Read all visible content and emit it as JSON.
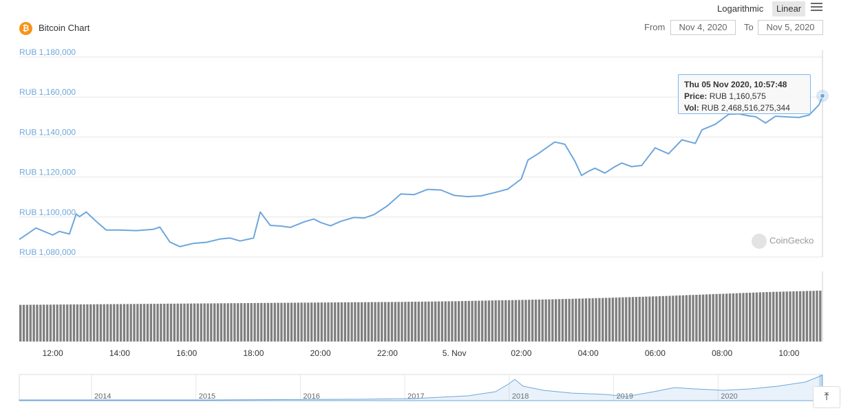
{
  "header": {
    "scale_log_label": "Logarithmic",
    "scale_linear_label": "Linear",
    "menu_icon": "hamburger-menu-icon",
    "chart_title": "Bitcoin Chart",
    "coin_icon": "bitcoin-icon",
    "coin_icon_glyph": "₿",
    "from_label": "From",
    "from_value": "Nov 4, 2020",
    "to_label": "To",
    "to_value": "Nov 5, 2020"
  },
  "tooltip": {
    "datetime": "Thu 05 Nov 2020, 10:57:48",
    "price_label": "Price:",
    "price_value": "RUB 1,160,575",
    "vol_label": "Vol:",
    "vol_value": "RUB 2,468,516,275,344"
  },
  "watermark": "CoinGecko",
  "back_to_top_glyph": "⤒",
  "colors": {
    "line": "#6ea6dc",
    "volume": "#7f7f7f",
    "grid": "#e6e6e6",
    "coin": "#f7931a"
  },
  "chart_data": {
    "type": "line",
    "title": "Bitcoin Chart",
    "currency": "RUB",
    "ylim": [
      1080000,
      1180000
    ],
    "y_ticks": [
      "RUB 1,180,000",
      "RUB 1,160,000",
      "RUB 1,140,000",
      "RUB 1,120,000",
      "RUB 1,100,000",
      "RUB 1,080,000"
    ],
    "y_tick_values": [
      1180000,
      1160000,
      1140000,
      1120000,
      1100000,
      1080000
    ],
    "x_ticks": [
      "12:00",
      "14:00",
      "16:00",
      "18:00",
      "20:00",
      "22:00",
      "5. Nov",
      "02:00",
      "04:00",
      "06:00",
      "08:00",
      "10:00"
    ],
    "x_tick_hours": [
      12,
      14,
      16,
      18,
      20,
      22,
      24,
      26,
      28,
      30,
      32,
      34
    ],
    "x_range_hours": [
      11.0,
      35.0
    ],
    "x_unit": "hours since Nov 4, 2020 00:00",
    "series": [
      {
        "points": [
          [
            11.0,
            1088800
          ],
          [
            11.5,
            1094500
          ],
          [
            12.0,
            1091000
          ],
          [
            12.2,
            1092800
          ],
          [
            12.5,
            1091500
          ],
          [
            12.7,
            1101500
          ],
          [
            12.8,
            1100200
          ],
          [
            13.0,
            1102500
          ],
          [
            13.3,
            1097800
          ],
          [
            13.6,
            1093500
          ],
          [
            14.0,
            1093500
          ],
          [
            14.5,
            1093200
          ],
          [
            15.0,
            1093800
          ],
          [
            15.2,
            1095000
          ],
          [
            15.5,
            1087500
          ],
          [
            15.8,
            1085200
          ],
          [
            16.2,
            1086800
          ],
          [
            16.6,
            1087400
          ],
          [
            17.0,
            1089000
          ],
          [
            17.3,
            1089500
          ],
          [
            17.6,
            1088000
          ],
          [
            18.0,
            1089500
          ],
          [
            18.2,
            1102500
          ],
          [
            18.5,
            1095800
          ],
          [
            18.8,
            1095500
          ],
          [
            19.1,
            1094800
          ],
          [
            19.5,
            1097500
          ],
          [
            19.8,
            1099000
          ],
          [
            20.0,
            1097300
          ],
          [
            20.3,
            1095600
          ],
          [
            20.6,
            1097800
          ],
          [
            21.0,
            1099800
          ],
          [
            21.3,
            1099500
          ],
          [
            21.6,
            1101200
          ],
          [
            22.0,
            1105600
          ],
          [
            22.4,
            1111500
          ],
          [
            22.8,
            1111200
          ],
          [
            23.2,
            1113800
          ],
          [
            23.6,
            1113500
          ],
          [
            24.0,
            1110800
          ],
          [
            24.4,
            1110200
          ],
          [
            24.8,
            1110600
          ],
          [
            25.2,
            1112200
          ],
          [
            25.6,
            1114000
          ],
          [
            26.0,
            1119000
          ],
          [
            26.2,
            1128500
          ],
          [
            26.5,
            1131600
          ],
          [
            26.8,
            1135200
          ],
          [
            27.0,
            1137500
          ],
          [
            27.3,
            1136400
          ],
          [
            27.6,
            1128000
          ],
          [
            27.8,
            1120800
          ],
          [
            28.0,
            1122800
          ],
          [
            28.2,
            1124400
          ],
          [
            28.5,
            1122000
          ],
          [
            28.8,
            1125200
          ],
          [
            29.0,
            1127000
          ],
          [
            29.3,
            1125200
          ],
          [
            29.6,
            1125800
          ],
          [
            30.0,
            1134600
          ],
          [
            30.4,
            1131600
          ],
          [
            30.8,
            1138600
          ],
          [
            31.2,
            1136800
          ],
          [
            31.4,
            1143600
          ],
          [
            31.8,
            1146400
          ],
          [
            32.2,
            1151400
          ],
          [
            32.5,
            1151600
          ],
          [
            32.8,
            1150600
          ],
          [
            33.0,
            1150200
          ],
          [
            33.3,
            1147000
          ],
          [
            33.6,
            1150400
          ],
          [
            34.0,
            1150000
          ],
          [
            34.3,
            1149800
          ],
          [
            34.6,
            1151000
          ],
          [
            34.9,
            1156200
          ],
          [
            35.0,
            1160575
          ]
        ]
      }
    ],
    "volume": {
      "label": "Vol",
      "values_trillion_rub": [
        1.78,
        1.8,
        1.82,
        1.84,
        1.86,
        1.88,
        1.9,
        1.92,
        1.95,
        2.0,
        2.05,
        2.12,
        2.2,
        2.3,
        2.4,
        2.47
      ]
    },
    "navigator": {
      "type": "area",
      "years": [
        "2014",
        "2015",
        "2016",
        "2017",
        "2018",
        "2019",
        "2020"
      ]
    },
    "hovered_point": {
      "hour": 35.0,
      "price": 1160575
    },
    "grid": true
  }
}
